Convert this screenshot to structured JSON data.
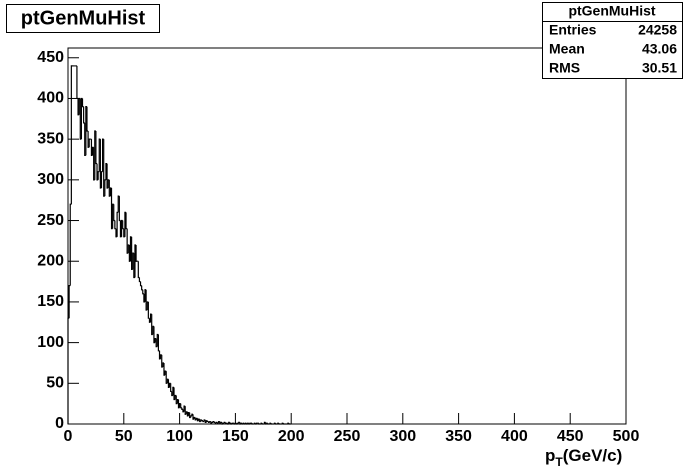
{
  "chart_data": {
    "type": "histogram",
    "title": "ptGenMuHist",
    "stats": {
      "title": "ptGenMuHist",
      "rows": [
        [
          "Entries",
          "24258"
        ],
        [
          "Mean",
          "43.06"
        ],
        [
          "RMS",
          "30.51"
        ]
      ]
    },
    "x_label": {
      "base": "p",
      "sub": "T",
      "rest": "(GeV/c)"
    },
    "bins": [
      0,
      1,
      2,
      3,
      4,
      5,
      6,
      7,
      8,
      9,
      10,
      11,
      12,
      13,
      14,
      15,
      16,
      17,
      18,
      19,
      20,
      21,
      22,
      23,
      24,
      25,
      26,
      27,
      28,
      29,
      30,
      31,
      32,
      33,
      34,
      35,
      36,
      37,
      38,
      39,
      40,
      41,
      42,
      43,
      44,
      45,
      46,
      47,
      48,
      49,
      50,
      51,
      52,
      53,
      54,
      55,
      56,
      57,
      58,
      59,
      60,
      61,
      62,
      63,
      64,
      65,
      66,
      67,
      68,
      69,
      70,
      71,
      72,
      73,
      74,
      75,
      76,
      77,
      78,
      79,
      80,
      81,
      82,
      83,
      84,
      85,
      86,
      87,
      88,
      89,
      90,
      91,
      92,
      93,
      94,
      95,
      96,
      97,
      98,
      99,
      100,
      101,
      102,
      103,
      104,
      105,
      106,
      107,
      108,
      109,
      110,
      111,
      112,
      113,
      114,
      115,
      116,
      117,
      118,
      119,
      120,
      121,
      122,
      123,
      124,
      125,
      126,
      127,
      128,
      129,
      130,
      131,
      132,
      133,
      134,
      135,
      136,
      137,
      138,
      139,
      140,
      141,
      142,
      143,
      144,
      145,
      146,
      147,
      148,
      149,
      150,
      151,
      152,
      153,
      154,
      155,
      156,
      157,
      158,
      159,
      160,
      161,
      162,
      163,
      164,
      165,
      166,
      167,
      168,
      169,
      170,
      171,
      172,
      173,
      174,
      175,
      176,
      177,
      178,
      179,
      180,
      181,
      182,
      183,
      184,
      185,
      186,
      187,
      188,
      189,
      190,
      191,
      192,
      193,
      194,
      195,
      196,
      197,
      198,
      199,
      200
    ],
    "counts": [
      130,
      170,
      270,
      440,
      440,
      440,
      440,
      440,
      400,
      380,
      400,
      350,
      400,
      390,
      370,
      330,
      390,
      360,
      340,
      350,
      350,
      330,
      340,
      300,
      360,
      320,
      300,
      310,
      350,
      290,
      310,
      350,
      280,
      300,
      320,
      290,
      300,
      280,
      290,
      240,
      270,
      250,
      240,
      230,
      260,
      280,
      250,
      230,
      250,
      240,
      230,
      260,
      240,
      210,
      220,
      200,
      230,
      190,
      210,
      180,
      220,
      200,
      200,
      180,
      175,
      170,
      165,
      160,
      150,
      165,
      140,
      150,
      130,
      125,
      135,
      110,
      120,
      100,
      105,
      95,
      110,
      90,
      80,
      85,
      70,
      75,
      60,
      65,
      50,
      55,
      45,
      50,
      40,
      35,
      45,
      30,
      35,
      25,
      30,
      20,
      25,
      20,
      18,
      15,
      22,
      12,
      15,
      10,
      14,
      8,
      10,
      12,
      6,
      8,
      5,
      7,
      4,
      6,
      3,
      5,
      4,
      3,
      5,
      2,
      4,
      3,
      2,
      3,
      1,
      2,
      3,
      2,
      1,
      2,
      1,
      3,
      1,
      2,
      0,
      1,
      2,
      1,
      1,
      0,
      2,
      1,
      0,
      1,
      1,
      0,
      1,
      0,
      1,
      2,
      0,
      1,
      0,
      1,
      0,
      1,
      0,
      1,
      0,
      1,
      1,
      0,
      0,
      1,
      0,
      1,
      1,
      0,
      0,
      1,
      0,
      0,
      2,
      0,
      1,
      0,
      0,
      1,
      0,
      0,
      0,
      1,
      0,
      0,
      1,
      0,
      0,
      0,
      1,
      0,
      0,
      0,
      0,
      1,
      0,
      0
    ],
    "color": "#000000",
    "xlim": [
      0,
      500
    ],
    "xticks": [
      0,
      50,
      100,
      150,
      200,
      250,
      300,
      350,
      400,
      450,
      500
    ],
    "ylim": [
      0,
      462
    ],
    "yticks": [
      0,
      50,
      100,
      150,
      200,
      250,
      300,
      350,
      400,
      450
    ]
  }
}
